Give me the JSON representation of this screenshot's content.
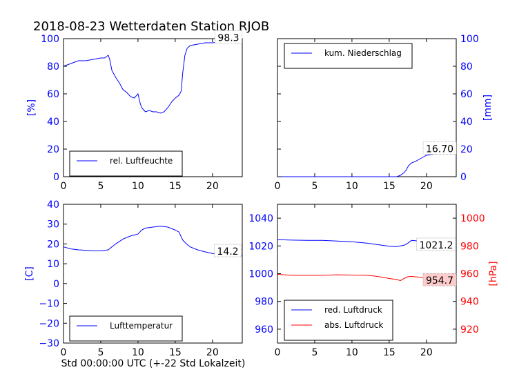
{
  "title": "2018-08-23 Wetterdaten Station RJOB",
  "xlabel": "Std 00:00:00 UTC (+-22 Std Lokalzeit)",
  "colors": {
    "blue": "#0000ff",
    "red": "#ff0000",
    "black": "#000000"
  },
  "chart_data": [
    {
      "type": "line",
      "position": "top-left",
      "ylabel": "[%]",
      "axis_color": "#0000ff",
      "xlim": [
        0,
        24
      ],
      "ylim": [
        0,
        100
      ],
      "xticks": [
        0,
        5,
        10,
        15,
        20
      ],
      "yticks": [
        0,
        20,
        40,
        60,
        80,
        100
      ],
      "legend": {
        "location": "lower center",
        "entries": [
          "rel. Luftfeuchte"
        ]
      },
      "annotation": "98.3",
      "series": [
        {
          "name": "rel. Luftfeuchte",
          "color": "#0000ff",
          "x": [
            0,
            1,
            2,
            3,
            4,
            5,
            5.5,
            6,
            6.2,
            6.5,
            7,
            7.5,
            8,
            8.5,
            9,
            9.5,
            10,
            10.3,
            10.5,
            11,
            11.5,
            12,
            12.5,
            13,
            13.5,
            14,
            14.5,
            15,
            15.5,
            15.8,
            16,
            16.3,
            16.6,
            17,
            18,
            19,
            20,
            21,
            22,
            23,
            24
          ],
          "y": [
            80,
            82,
            84,
            84,
            85,
            86,
            86,
            88,
            85,
            77,
            72,
            68,
            63,
            61,
            58,
            57,
            60,
            53,
            50,
            47,
            48,
            47,
            47,
            46,
            47,
            50,
            54,
            57,
            59,
            62,
            75,
            88,
            93,
            95,
            96,
            97,
            97,
            97.5,
            98,
            98.3,
            98.3
          ]
        }
      ]
    },
    {
      "type": "line",
      "position": "top-right",
      "ylabel": "[mm]",
      "axis_color": "#0000ff",
      "xlim": [
        0,
        24
      ],
      "ylim": [
        0,
        100
      ],
      "xticks": [
        0,
        5,
        10,
        15,
        20
      ],
      "yticks": [
        0,
        20,
        40,
        60,
        80,
        100
      ],
      "legend": {
        "location": "upper left",
        "entries": [
          "kum. Niederschlag"
        ]
      },
      "annotation": "16.70",
      "series": [
        {
          "name": "kum. Niederschlag",
          "color": "#0000ff",
          "x": [
            0,
            16,
            16.5,
            17,
            17.3,
            17.6,
            18,
            18.5,
            19,
            19.5,
            20,
            21,
            22,
            23,
            24
          ],
          "y": [
            0,
            0,
            1,
            3,
            5,
            8,
            10,
            11,
            12.5,
            14,
            15.5,
            16.4,
            16.6,
            16.7,
            16.7
          ]
        }
      ]
    },
    {
      "type": "line",
      "position": "bottom-left",
      "ylabel": "[C]",
      "axis_color": "#0000ff",
      "xlim": [
        0,
        24
      ],
      "ylim": [
        -30,
        40
      ],
      "xticks": [
        0,
        5,
        10,
        15,
        20
      ],
      "yticks": [
        -30,
        -20,
        -10,
        0,
        10,
        20,
        30,
        40
      ],
      "legend": {
        "location": "lower center",
        "entries": [
          "Lufttemperatur"
        ]
      },
      "annotation": "14.2",
      "series": [
        {
          "name": "Lufttemperatur",
          "color": "#0000ff",
          "x": [
            0,
            1,
            2,
            3,
            4,
            5,
            6,
            7,
            8,
            9,
            10,
            10.5,
            11,
            12,
            13,
            14,
            15,
            15.5,
            16,
            16.5,
            17,
            18,
            19,
            20,
            21,
            22,
            23,
            24
          ],
          "y": [
            18.5,
            17.5,
            17,
            16.8,
            16.5,
            16.5,
            17,
            20,
            22.5,
            24,
            25,
            27,
            28,
            28.5,
            29,
            28.5,
            27,
            26,
            22,
            20,
            18.5,
            17,
            16,
            15.2,
            14.8,
            14.5,
            14.3,
            14.2
          ]
        }
      ]
    },
    {
      "type": "line",
      "position": "bottom-right",
      "ylabel": "[hPa]",
      "axis_color": "#ff0000",
      "xlim": [
        0,
        24
      ],
      "ylim_left": [
        950,
        1050
      ],
      "ylim_right": [
        910,
        1010
      ],
      "xticks": [
        0,
        5,
        10,
        15,
        20
      ],
      "yticks_left": [
        960,
        980,
        1000,
        1020,
        1040
      ],
      "yticks_right": [
        920,
        940,
        960,
        980,
        1000
      ],
      "legend": {
        "location": "lower left",
        "entries": [
          "red. Luftdruck",
          "abs. Luftdruck"
        ]
      },
      "annotations": [
        "1021.2",
        "954.7"
      ],
      "series": [
        {
          "name": "red. Luftdruck",
          "color": "#0000ff",
          "axis": "left",
          "x": [
            0,
            2,
            4,
            6,
            8,
            10,
            12,
            14,
            15,
            16,
            17,
            17.5,
            18,
            19,
            20,
            22,
            24
          ],
          "y": [
            1024.5,
            1024.2,
            1024,
            1024,
            1023.5,
            1023,
            1022,
            1020.5,
            1019.8,
            1019.5,
            1020.5,
            1022,
            1024,
            1023.5,
            1023,
            1022,
            1021.2
          ]
        },
        {
          "name": "abs. Luftdruck",
          "color": "#ff0000",
          "axis": "right",
          "x": [
            0,
            2,
            4,
            6,
            8,
            10,
            12,
            13,
            14,
            15,
            16,
            16.5,
            17,
            17.5,
            18,
            19,
            20,
            22,
            24
          ],
          "y": [
            959.5,
            958.8,
            958.8,
            958.8,
            959.2,
            959,
            958.8,
            958.3,
            957.5,
            956.5,
            955.8,
            955,
            956.5,
            957.8,
            958,
            957.5,
            957,
            956,
            954.7
          ]
        }
      ]
    }
  ]
}
